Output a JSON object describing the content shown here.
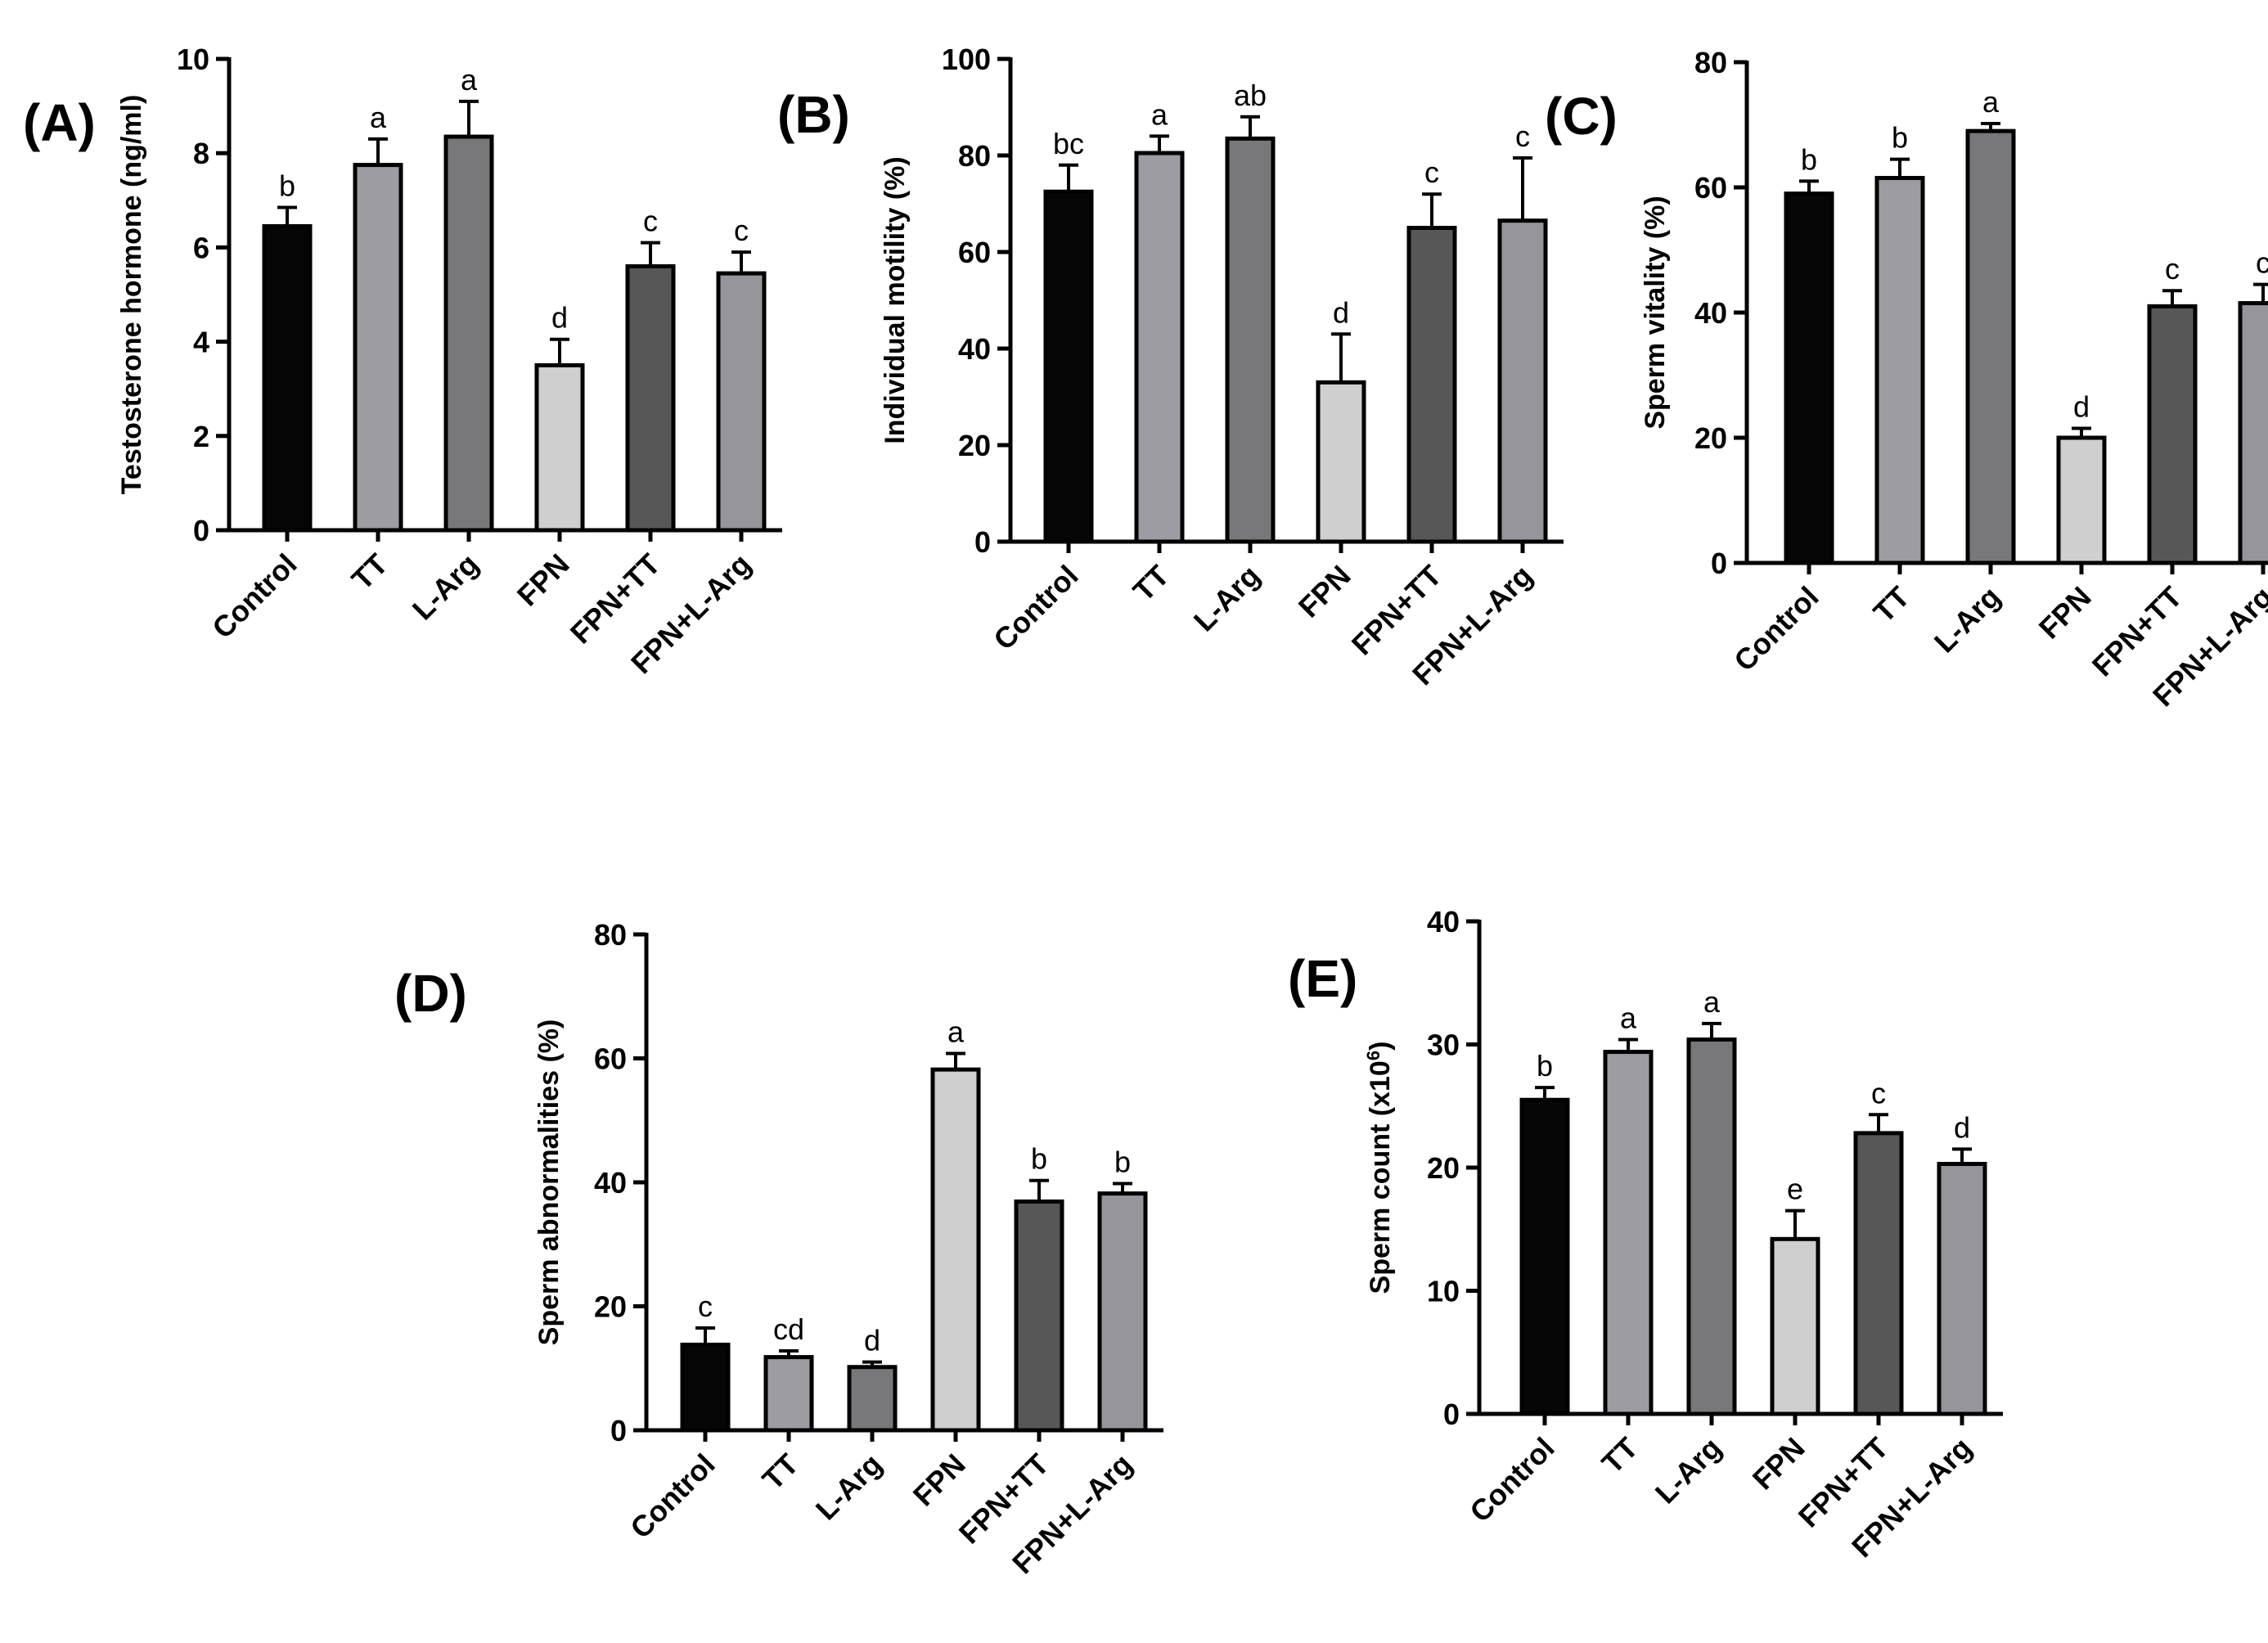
{
  "chart_data": [
    {
      "type": "bar",
      "panel": "(A)",
      "ylabel": "Testosterone hormone (ng/ml)",
      "ylim": [
        0,
        10
      ],
      "yticks": [
        0,
        2,
        4,
        6,
        8,
        10
      ],
      "categories": [
        "Control",
        "TT",
        "L-Arg",
        "FPN",
        "FPN+TT",
        "FPN+L-Arg"
      ],
      "values": [
        6.45,
        7.75,
        8.35,
        3.5,
        5.6,
        5.45
      ],
      "errors": [
        0.4,
        0.55,
        0.75,
        0.55,
        0.5,
        0.45
      ],
      "letters": [
        "b",
        "a",
        "a",
        "d",
        "c",
        "c"
      ]
    },
    {
      "type": "bar",
      "panel": "(B)",
      "ylabel": "Individual motility (%)",
      "ylim": [
        0,
        100
      ],
      "yticks": [
        0,
        20,
        40,
        60,
        80,
        100
      ],
      "categories": [
        "Control",
        "TT",
        "L-Arg",
        "FPN",
        "FPN+TT",
        "FPN+L-Arg"
      ],
      "values": [
        72.5,
        80.5,
        83.5,
        33,
        65,
        66.5
      ],
      "errors": [
        5.5,
        3.5,
        4.5,
        10,
        7,
        13
      ],
      "letters": [
        "bc",
        "a",
        "ab",
        "d",
        "c",
        "c"
      ]
    },
    {
      "type": "bar",
      "panel": "(C)",
      "ylabel": "Sperm vitality (%)",
      "ylim": [
        0,
        80
      ],
      "yticks": [
        0,
        20,
        40,
        60,
        80
      ],
      "categories": [
        "Control",
        "TT",
        "L-Arg",
        "FPN",
        "FPN+TT",
        "FPN+L-Arg"
      ],
      "values": [
        59,
        61.5,
        69,
        20,
        41,
        41.5
      ],
      "errors": [
        2,
        3,
        1.2,
        1.5,
        2.5,
        3
      ],
      "letters": [
        "b",
        "b",
        "a",
        "d",
        "c",
        "c"
      ]
    },
    {
      "type": "bar",
      "panel": "(D)",
      "ylabel": "Sperm abnormalities (%)",
      "ylim": [
        0,
        80
      ],
      "yticks": [
        0,
        20,
        40,
        60,
        80
      ],
      "categories": [
        "Control",
        "TT",
        "L-Arg",
        "FPN",
        "FPN+TT",
        "FPN+L-Arg"
      ],
      "values": [
        13.8,
        11.8,
        10.2,
        58.2,
        36.9,
        38.2
      ],
      "errors": [
        2.7,
        1,
        0.8,
        2.6,
        3.4,
        1.6
      ],
      "letters": [
        "c",
        "cd",
        "d",
        "a",
        "b",
        "b"
      ]
    },
    {
      "type": "bar",
      "panel": "(E)",
      "ylabel": "Sperm count (x10",
      "ylabel_sup": "6",
      "ylabel_end": ")",
      "ylim": [
        0,
        40
      ],
      "yticks": [
        0,
        10,
        20,
        30,
        40
      ],
      "categories": [
        "Control",
        "TT",
        "L-Arg",
        "FPN",
        "FPN+TT",
        "FPN+L-Arg"
      ],
      "values": [
        25.5,
        29.4,
        30.4,
        14.2,
        22.8,
        20.3
      ],
      "errors": [
        1,
        1,
        1.3,
        2.3,
        1.5,
        1.2
      ],
      "letters": [
        "b",
        "a",
        "a",
        "e",
        "c",
        "d"
      ]
    }
  ],
  "colors": {
    "Control": "#060606",
    "TT": "#9c9ca2",
    "L-Arg": "#78787a",
    "FPN": "#cfcfcf",
    "FPN+TT": "#575757",
    "FPN+L-Arg": "#95959b"
  }
}
